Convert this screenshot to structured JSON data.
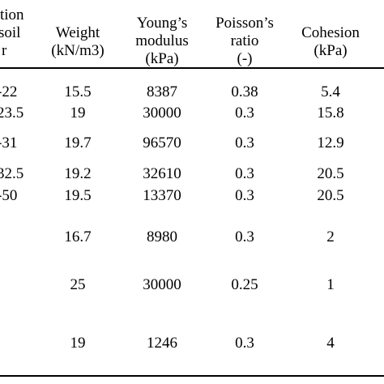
{
  "table": {
    "headers": {
      "first": [
        "tion",
        "soil",
        "r"
      ],
      "weight": [
        "Weight",
        "(kN/m3)"
      ],
      "youngs": [
        "Young’s",
        "modulus",
        "(kPa)"
      ],
      "poisson": [
        "Poisson’s",
        "ratio",
        "(-)"
      ],
      "cohesion": [
        "Cohesion",
        "(kPa)"
      ]
    },
    "rows": [
      {
        "first": "-22",
        "weight": "15.5",
        "modulus": "8387",
        "poisson": "0.38",
        "cohesion": "5.4"
      },
      {
        "first": "23.5",
        "weight": "19",
        "modulus": "30000",
        "poisson": "0.3",
        "cohesion": "15.8"
      },
      {
        "first": "-31",
        "weight": "19.7",
        "modulus": "96570",
        "poisson": "0.3",
        "cohesion": "12.9"
      },
      {
        "first": "32.5",
        "weight": "19.2",
        "modulus": "32610",
        "poisson": "0.3",
        "cohesion": "20.5"
      },
      {
        "first": "-50",
        "weight": "19.5",
        "modulus": "13370",
        "poisson": "0.3",
        "cohesion": "20.5"
      },
      {
        "first": "",
        "weight": "16.7",
        "modulus": "8980",
        "poisson": "0.3",
        "cohesion": "2"
      },
      {
        "first": "",
        "weight": "25",
        "modulus": "30000",
        "poisson": "0.25",
        "cohesion": "1"
      },
      {
        "first": "",
        "weight": "19",
        "modulus": "1246",
        "poisson": "0.3",
        "cohesion": "4"
      }
    ]
  }
}
